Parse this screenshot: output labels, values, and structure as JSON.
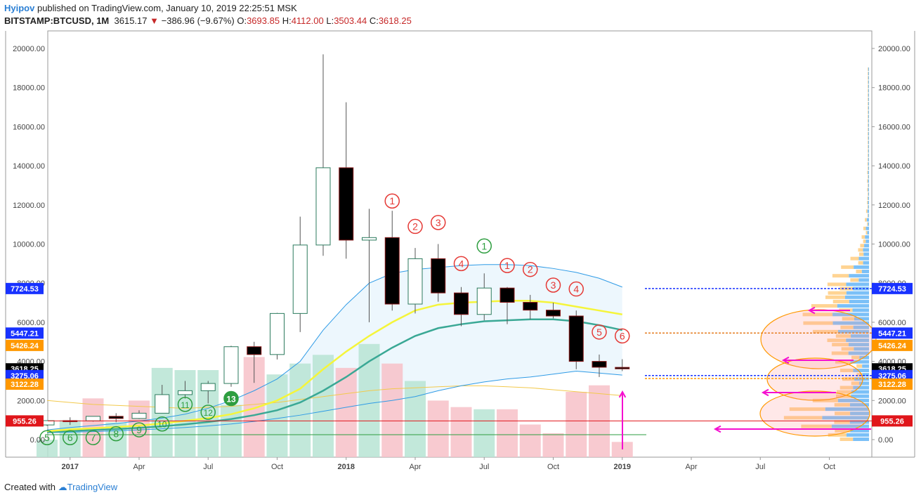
{
  "header": {
    "author": "Hyipov",
    "published": "published on TradingView.com, January 10, 2019 22:25:51 MSK",
    "symbol": "BITSTAMP:BTCUSD, 1M",
    "last": "3615.17",
    "change": "−386.96 (−9.67%)",
    "o_label": "O:",
    "o_value": "3693.85",
    "h_label": "H:",
    "h_value": "4112.00",
    "l_label": "L:",
    "l_value": "3503.44",
    "c_label": "C:",
    "c_value": "3618.25"
  },
  "footer": {
    "created": "Created with",
    "brand": "TradingView"
  },
  "colors": {
    "up_volume": "#b7e4d4",
    "down_volume": "#f7c1c8",
    "ema_fast": "#f5f53a",
    "ema_slow": "#3aa895",
    "band": "#2f9be6",
    "band_fill": "#e6f3fc",
    "marker_red": "#e53935",
    "marker_green": "#2e9e40",
    "arrow": "#f50fd0"
  },
  "chart_data": {
    "type": "candlestick",
    "x_tick_labels": [
      "2017",
      "Apr",
      "Jul",
      "Oct",
      "2018",
      "Apr",
      "Jul",
      "Oct",
      "2019",
      "Apr",
      "Jul",
      "Oct"
    ],
    "y_tick_labels": [
      "0.00",
      "2000.00",
      "4000.00",
      "6000.00",
      "8000.00",
      "10000.00",
      "12000.00",
      "14000.00",
      "16000.00",
      "18000.00",
      "20000.00"
    ],
    "ylim": [
      -800,
      21000
    ],
    "candles": [
      {
        "t": "2016-12",
        "o": 750,
        "h": 975,
        "l": 700,
        "c": 970
      },
      {
        "t": "2017-01",
        "o": 970,
        "h": 1140,
        "l": 750,
        "c": 960
      },
      {
        "t": "2017-02",
        "o": 960,
        "h": 1200,
        "l": 920,
        "c": 1190
      },
      {
        "t": "2017-03",
        "o": 1190,
        "h": 1350,
        "l": 890,
        "c": 1080
      },
      {
        "t": "2017-04",
        "o": 1080,
        "h": 1500,
        "l": 1050,
        "c": 1350
      },
      {
        "t": "2017-05",
        "o": 1350,
        "h": 2800,
        "l": 1340,
        "c": 2300
      },
      {
        "t": "2017-06",
        "o": 2300,
        "h": 3000,
        "l": 2100,
        "c": 2500
      },
      {
        "t": "2017-07",
        "o": 2500,
        "h": 3000,
        "l": 1850,
        "c": 2870
      },
      {
        "t": "2017-08",
        "o": 2870,
        "h": 4800,
        "l": 2700,
        "c": 4750
      },
      {
        "t": "2017-09",
        "o": 4750,
        "h": 5000,
        "l": 2900,
        "c": 4350
      },
      {
        "t": "2017-10",
        "o": 4350,
        "h": 6480,
        "l": 4100,
        "c": 6450
      },
      {
        "t": "2017-11",
        "o": 6450,
        "h": 11400,
        "l": 5500,
        "c": 9950
      },
      {
        "t": "2017-12",
        "o": 9950,
        "h": 19700,
        "l": 9400,
        "c": 13900
      },
      {
        "t": "2018-01",
        "o": 13900,
        "h": 17250,
        "l": 9250,
        "c": 10200
      },
      {
        "t": "2018-02",
        "o": 10200,
        "h": 11800,
        "l": 6000,
        "c": 10330
      },
      {
        "t": "2018-03",
        "o": 10330,
        "h": 11700,
        "l": 6600,
        "c": 6930
      },
      {
        "t": "2018-04",
        "o": 6930,
        "h": 9800,
        "l": 6450,
        "c": 9250
      },
      {
        "t": "2018-05",
        "o": 9250,
        "h": 10000,
        "l": 7050,
        "c": 7500
      },
      {
        "t": "2018-06",
        "o": 7500,
        "h": 7800,
        "l": 5800,
        "c": 6400
      },
      {
        "t": "2018-07",
        "o": 6400,
        "h": 8500,
        "l": 6100,
        "c": 7750
      },
      {
        "t": "2018-08",
        "o": 7750,
        "h": 7800,
        "l": 5900,
        "c": 7020
      },
      {
        "t": "2018-09",
        "o": 7020,
        "h": 7400,
        "l": 6150,
        "c": 6620
      },
      {
        "t": "2018-10",
        "o": 6620,
        "h": 7000,
        "l": 6200,
        "c": 6320
      },
      {
        "t": "2018-11",
        "o": 6320,
        "h": 6600,
        "l": 3600,
        "c": 4000
      },
      {
        "t": "2018-12",
        "o": 4000,
        "h": 4350,
        "l": 3200,
        "c": 3700
      },
      {
        "t": "2019-01",
        "o": 3693.85,
        "h": 4112,
        "l": 3503.44,
        "c": 3618.25
      }
    ],
    "volume_dir": [
      "up",
      "up",
      "down",
      "up",
      "down",
      "up",
      "up",
      "up",
      "up",
      "down",
      "up",
      "up",
      "up",
      "down",
      "up",
      "down",
      "up",
      "down",
      "down",
      "up",
      "down",
      "down",
      "down",
      "down",
      "down",
      "down"
    ],
    "volume_rel": [
      0.08,
      0.17,
      0.27,
      0.16,
      0.26,
      0.41,
      0.4,
      0.4,
      0.24,
      0.46,
      0.38,
      0.43,
      0.47,
      0.41,
      0.52,
      0.43,
      0.35,
      0.26,
      0.23,
      0.22,
      0.22,
      0.15,
      0.11,
      0.3,
      0.33,
      0.07
    ],
    "ema_fast": [
      430,
      520,
      580,
      640,
      720,
      820,
      960,
      1100,
      1300,
      1600,
      2000,
      2600,
      3600,
      4500,
      5300,
      6000,
      6600,
      6900,
      7000,
      7050,
      7100,
      7100,
      7000,
      6800,
      6600,
      6400
    ],
    "ema_slow": [
      380,
      440,
      490,
      540,
      600,
      680,
      780,
      900,
      1050,
      1250,
      1500,
      1900,
      2500,
      3200,
      4000,
      4700,
      5300,
      5700,
      5900,
      6050,
      6100,
      6150,
      6150,
      6050,
      5850,
      5600
    ],
    "band_upper": [
      500,
      620,
      720,
      820,
      950,
      1100,
      1300,
      1600,
      2000,
      2500,
      3100,
      4000,
      5600,
      6900,
      8000,
      8500,
      8700,
      8800,
      8900,
      8950,
      8950,
      8900,
      8750,
      8550,
      8250,
      7800
    ],
    "band_lower": [
      350,
      380,
      410,
      450,
      500,
      550,
      620,
      700,
      800,
      930,
      1080,
      1250,
      1450,
      1650,
      1850,
      2000,
      2200,
      2500,
      2750,
      2950,
      3100,
      3200,
      3350,
      3500,
      3400,
      3300
    ],
    "yellow_thin": [
      2000,
      1900,
      1800,
      1750,
      1700,
      1650,
      1600,
      1650,
      1700,
      1800,
      1900,
      2050,
      2200,
      2350,
      2500,
      2600,
      2650,
      2700,
      2750,
      2750,
      2700,
      2650,
      2550,
      2450,
      2350,
      2250
    ],
    "horizontal_levels": [
      {
        "value": 7724.53,
        "label": "7724.53",
        "bg": "#1832ff",
        "style": "dotted",
        "color": "#1832ff"
      },
      {
        "value": 5447.21,
        "label": "5447.21",
        "bg": "#1832ff",
        "style": "dotted",
        "color": "#e67e22"
      },
      {
        "value": 5426.24,
        "label": "5426.24",
        "bg": "#ff9800",
        "style": "none",
        "color": "#ff9800"
      },
      {
        "value": 3618.25,
        "label": "3618.25",
        "bg": "#000000",
        "style": "none",
        "color": "#000000"
      },
      {
        "value": 3275.06,
        "label": "3275.06",
        "bg": "#1832ff",
        "style": "dotted",
        "color": "#1832ff"
      },
      {
        "value": 3122.28,
        "label": "3122.28",
        "bg": "#ff9800",
        "style": "dotted",
        "color": "#ff9800"
      },
      {
        "value": 955.26,
        "label": "955.26",
        "bg": "#e0161b",
        "style": "solid",
        "color": "#e0161b"
      }
    ],
    "annotations": [
      {
        "text": "1",
        "t": "2018-03",
        "v": 12200,
        "color": "red"
      },
      {
        "text": "2",
        "t": "2018-04",
        "v": 10900,
        "color": "red"
      },
      {
        "text": "3",
        "t": "2018-05",
        "v": 11100,
        "color": "red"
      },
      {
        "text": "4",
        "t": "2018-06",
        "v": 9000,
        "color": "red"
      },
      {
        "text": "1",
        "t": "2018-07",
        "v": 9900,
        "color": "green"
      },
      {
        "text": "1",
        "t": "2018-08",
        "v": 8900,
        "color": "red"
      },
      {
        "text": "2",
        "t": "2018-09",
        "v": 8700,
        "color": "red"
      },
      {
        "text": "3",
        "t": "2018-10",
        "v": 7900,
        "color": "red"
      },
      {
        "text": "4",
        "t": "2018-11",
        "v": 7700,
        "color": "red"
      },
      {
        "text": "5",
        "t": "2018-12",
        "v": 5500,
        "color": "red"
      },
      {
        "text": "6",
        "t": "2019-01",
        "v": 5300,
        "color": "red"
      },
      {
        "text": "5",
        "t": "2016-12",
        "v": 100,
        "color": "green"
      },
      {
        "text": "6",
        "t": "2017-01",
        "v": 100,
        "color": "green"
      },
      {
        "text": "7",
        "t": "2017-02",
        "v": 100,
        "color": "green"
      },
      {
        "text": "8",
        "t": "2017-03",
        "v": 300,
        "color": "green"
      },
      {
        "text": "9",
        "t": "2017-04",
        "v": 500,
        "color": "green"
      },
      {
        "text": "10",
        "t": "2017-05",
        "v": 800,
        "color": "green"
      },
      {
        "text": "11",
        "t": "2017-06",
        "v": 1800,
        "color": "green"
      },
      {
        "text": "12",
        "t": "2017-07",
        "v": 1400,
        "color": "green"
      },
      {
        "text": "13",
        "t": "2017-08",
        "v": 2100,
        "color": "greenfill"
      }
    ]
  }
}
